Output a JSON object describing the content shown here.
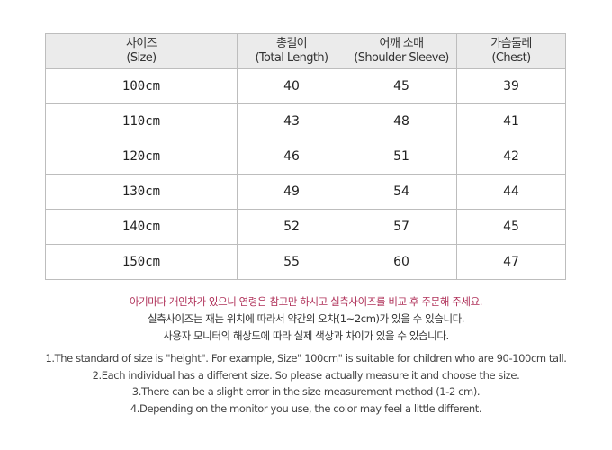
{
  "table": {
    "headers": [
      {
        "ko": "사이즈",
        "en": "(Size)"
      },
      {
        "ko": "총길이",
        "en": "(Total Length)"
      },
      {
        "ko": "어깨 소매",
        "en": "(Shoulder Sleeve)"
      },
      {
        "ko": "가슴둘레",
        "en": "(Chest)"
      }
    ],
    "rows": [
      [
        "100cm",
        "40",
        "45",
        "39"
      ],
      [
        "110cm",
        "43",
        "48",
        "41"
      ],
      [
        "120cm",
        "46",
        "51",
        "42"
      ],
      [
        "130cm",
        "49",
        "54",
        "44"
      ],
      [
        "140cm",
        "52",
        "57",
        "45"
      ],
      [
        "150cm",
        "55",
        "60",
        "47"
      ]
    ]
  },
  "notes_ko": [
    "아기마다 개인차가 있으니 연령은 참고만 하시고 실측사이즈를 비교 후 주문해 주세요.",
    "실측사이즈는 재는 위치에 따라서 약간의  오차(1~2cm)가 있을 수 있습니다.",
    "사용자 모니터의 해상도에 따라 실제 색상과 차이가 있을 수 있습니다."
  ],
  "notes_en": [
    "1.The standard of size is \"height\". For example,  Size\" 100cm\" is suitable for children who are 90-100cm tall.",
    "2.Each individual has a different size. So please actually measure it and choose the size.",
    "3.There can be a slight error in the size measurement method (1-2 cm).",
    "4.Depending on the monitor you use, the color may feel a little different."
  ],
  "colors": {
    "highlight_text": "#b0325a",
    "header_bg": "#ebebeb"
  }
}
